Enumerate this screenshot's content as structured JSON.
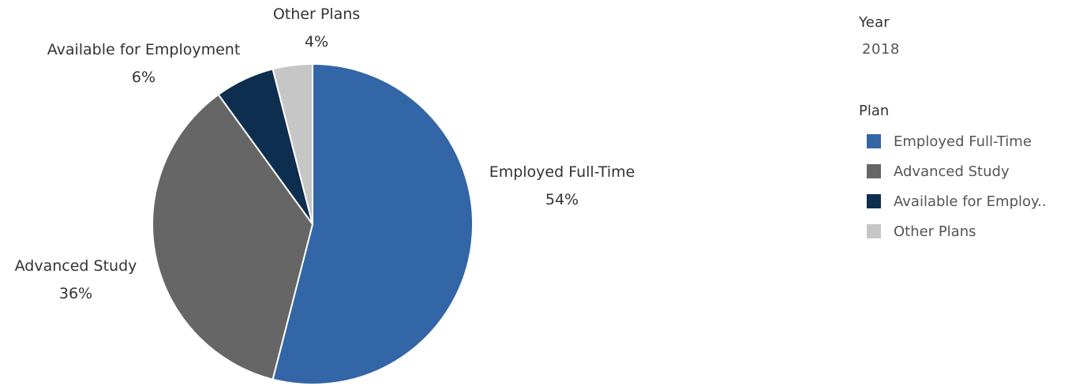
{
  "filter": {
    "title": "Year",
    "value": "2018"
  },
  "legend": {
    "title": "Plan",
    "items": [
      {
        "label": "Employed Full-Time",
        "display": "Employed Full-Time",
        "color": "#3366a6"
      },
      {
        "label": "Advanced Study",
        "display": "Advanced Study",
        "color": "#666666"
      },
      {
        "label": "Available for Employment",
        "display": "Available for Employ..",
        "color": "#0d2e4f"
      },
      {
        "label": "Other Plans",
        "display": "Other Plans",
        "color": "#c6c6c6"
      }
    ]
  },
  "chart_data": {
    "type": "pie",
    "series": [
      {
        "name": "Employed Full-Time",
        "value": 54,
        "label": "54%",
        "color": "#3366a6"
      },
      {
        "name": "Advanced Study",
        "value": 36,
        "label": "36%",
        "color": "#666666"
      },
      {
        "name": "Available for Employment",
        "value": 6,
        "label": "6%",
        "color": "#0d2e4f"
      },
      {
        "name": "Other Plans",
        "value": 4,
        "label": "4%",
        "color": "#c6c6c6"
      }
    ],
    "unit": "%",
    "start_angle": "12 o'clock",
    "direction": "clockwise",
    "legend_position": "right"
  }
}
